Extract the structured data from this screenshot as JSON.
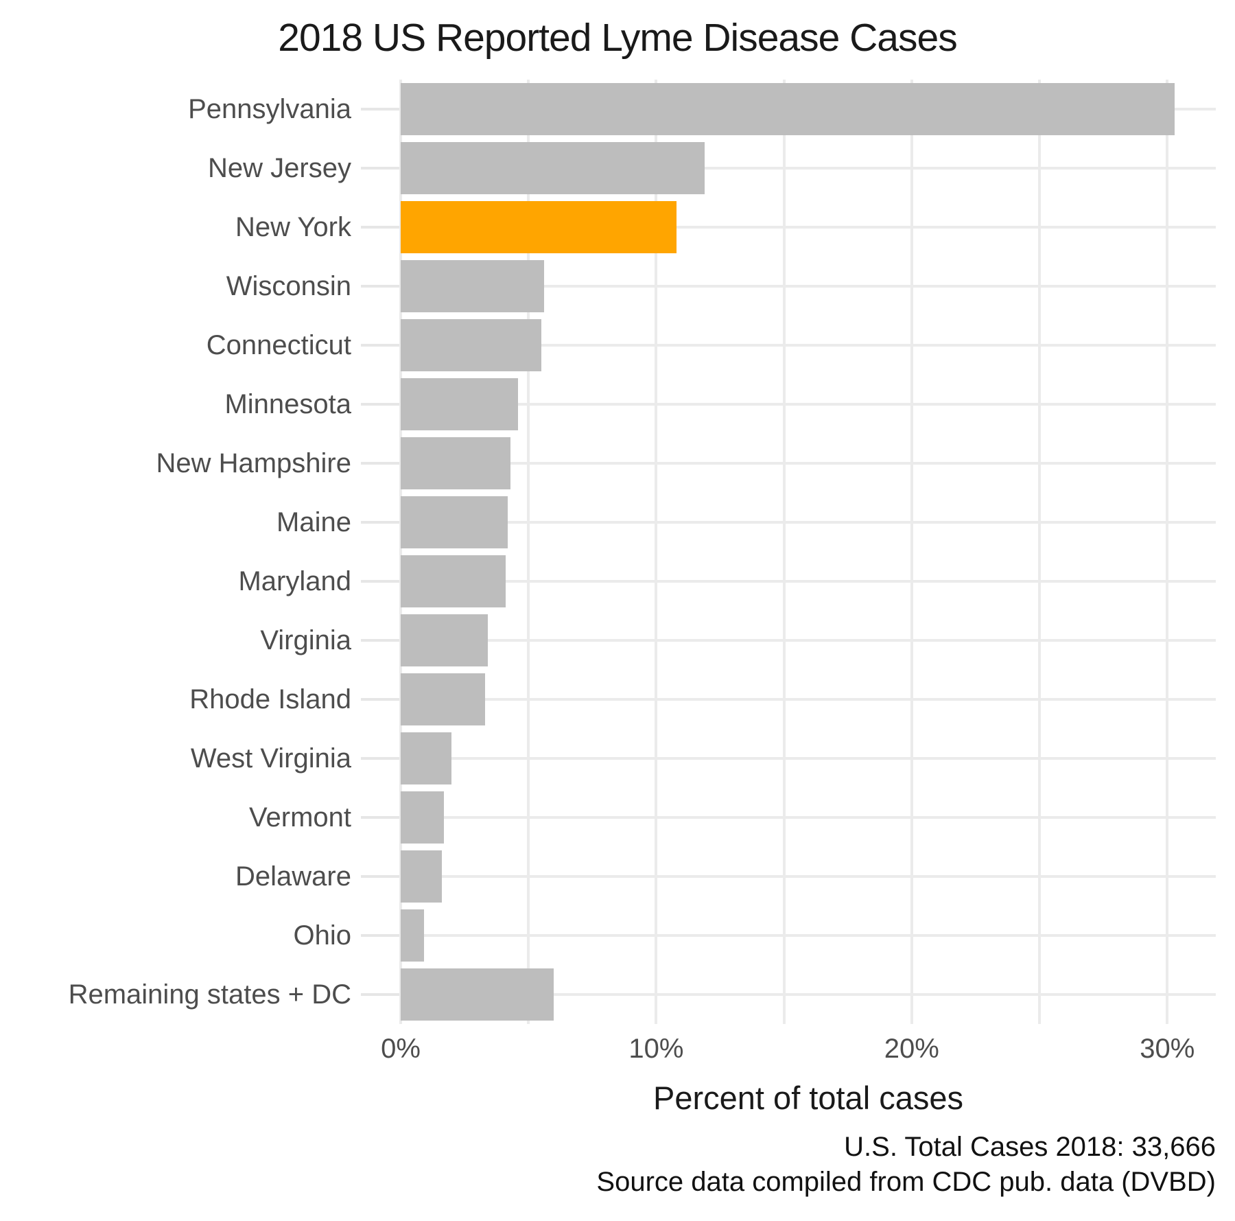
{
  "chart_data": {
    "type": "bar",
    "orientation": "horizontal",
    "title": "2018 US Reported Lyme Disease Cases",
    "xlabel": "Percent of total cases",
    "categories": [
      "Pennsylvania",
      "New Jersey",
      "New York",
      "Wisconsin",
      "Connecticut",
      "Minnesota",
      "New Hampshire",
      "Maine",
      "Maryland",
      "Virginia",
      "Rhode Island",
      "West Virginia",
      "Vermont",
      "Delaware",
      "Ohio",
      "Remaining states + DC"
    ],
    "values": [
      30.3,
      11.9,
      10.8,
      5.6,
      5.5,
      4.6,
      4.3,
      4.2,
      4.1,
      3.4,
      3.3,
      2.0,
      1.7,
      1.6,
      0.9,
      6.0
    ],
    "value_unit": "percent of total cases",
    "highlight_category": "New York",
    "x_ticks": [
      {
        "value": 0,
        "label": "0%"
      },
      {
        "value": 10,
        "label": "10%"
      },
      {
        "value": 20,
        "label": "20%"
      },
      {
        "value": 30,
        "label": "30%"
      }
    ],
    "x_grid_step": 5,
    "xlim": [
      0,
      31.9
    ],
    "grid": "on",
    "legend": "none",
    "caption_lines": [
      "U.S. Total Cases 2018: 33,666",
      "Source data compiled from CDC pub. data (DVBD)"
    ],
    "colors": {
      "bar_default": "#BDBDBD",
      "bar_highlight": "#FFA500",
      "gridline": "#EBEBEB",
      "tick_mark": "#E6E6E6",
      "axis_text": "#4D4D4D",
      "title_text": "#1A1A1A",
      "caption_text": "#111111"
    }
  }
}
